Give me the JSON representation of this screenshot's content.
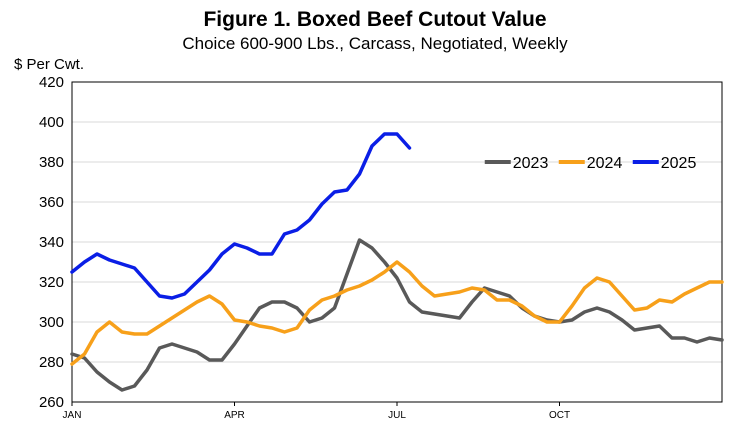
{
  "chart_data": {
    "type": "line",
    "title": "Figure 1. Boxed Beef Cutout Value",
    "subtitle": "Choice 600-900 Lbs., Carcass, Negotiated, Weekly",
    "ylabel": "$ Per Cwt.",
    "xlabel": "",
    "ylim": [
      260,
      420
    ],
    "yticks": [
      260,
      280,
      300,
      320,
      340,
      360,
      380,
      400,
      420
    ],
    "xlim": [
      1,
      53
    ],
    "xticks": [
      {
        "week": 1,
        "label": "JAN"
      },
      {
        "week": 14,
        "label": "APR"
      },
      {
        "week": 27,
        "label": "JUL"
      },
      {
        "week": 40,
        "label": "OCT"
      }
    ],
    "grid": true,
    "legend_position": "upper-right",
    "series": [
      {
        "name": "2023",
        "color": "#595959",
        "x": [
          1,
          2,
          3,
          4,
          5,
          6,
          7,
          8,
          9,
          10,
          11,
          12,
          13,
          14,
          15,
          16,
          17,
          18,
          19,
          20,
          21,
          22,
          23,
          24,
          25,
          26,
          27,
          28,
          29,
          30,
          31,
          32,
          33,
          34,
          35,
          36,
          37,
          38,
          39,
          40,
          41,
          42,
          43,
          44,
          45,
          46,
          47,
          48,
          49,
          50,
          51,
          52,
          53
        ],
        "values": [
          284,
          282,
          275,
          270,
          266,
          268,
          276,
          287,
          289,
          287,
          285,
          281,
          281,
          289,
          298,
          307,
          310,
          310,
          307,
          300,
          302,
          307,
          324,
          341,
          337,
          330,
          322,
          310,
          305,
          304,
          303,
          302,
          310,
          317,
          315,
          313,
          307,
          303,
          301,
          300,
          301,
          305,
          307,
          305,
          301,
          296,
          297,
          298,
          292,
          292,
          290,
          292,
          291
        ]
      },
      {
        "name": "2024",
        "color": "#f7a01a",
        "x": [
          1,
          2,
          3,
          4,
          5,
          6,
          7,
          8,
          9,
          10,
          11,
          12,
          13,
          14,
          15,
          16,
          17,
          18,
          19,
          20,
          21,
          22,
          23,
          24,
          25,
          26,
          27,
          28,
          29,
          30,
          31,
          32,
          33,
          34,
          35,
          36,
          37,
          38,
          39,
          40,
          41,
          42,
          43,
          44,
          45,
          46,
          47,
          48,
          49,
          50,
          51,
          52,
          53
        ],
        "values": [
          279,
          284,
          295,
          300,
          295,
          294,
          294,
          298,
          302,
          306,
          310,
          313,
          309,
          301,
          300,
          298,
          297,
          295,
          297,
          306,
          311,
          313,
          316,
          318,
          321,
          325,
          330,
          325,
          318,
          313,
          314,
          315,
          317,
          316,
          311,
          311,
          308,
          303,
          300,
          300,
          308,
          317,
          322,
          320,
          313,
          306,
          307,
          311,
          310,
          314,
          317,
          320,
          320
        ]
      },
      {
        "name": "2025",
        "color": "#0a1ee6",
        "x": [
          1,
          2,
          3,
          4,
          5,
          6,
          7,
          8,
          9,
          10,
          11,
          12,
          13,
          14,
          15,
          16,
          17,
          18,
          19,
          20,
          21,
          22,
          23,
          24,
          25,
          26,
          27,
          28
        ],
        "values": [
          325,
          330,
          334,
          331,
          329,
          327,
          320,
          313,
          312,
          314,
          320,
          326,
          334,
          339,
          337,
          334,
          334,
          344,
          346,
          351,
          359,
          365,
          366,
          374,
          388,
          394,
          394,
          387
        ]
      }
    ]
  }
}
